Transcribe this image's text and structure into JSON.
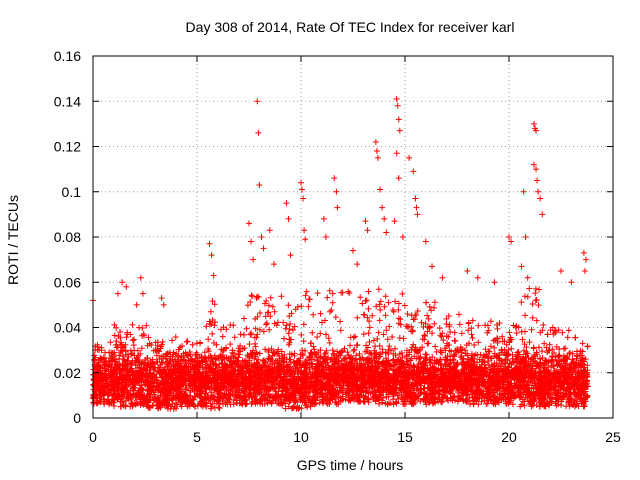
{
  "chart_data": {
    "type": "scatter",
    "title": "Day 308 of 2014, Rate Of TEC Index for receiver karl",
    "xlabel": "GPS time / hours",
    "ylabel": "ROTI / TECUs",
    "xlim": [
      0,
      25
    ],
    "ylim": [
      0,
      0.16
    ],
    "xticks": [
      0,
      5,
      10,
      15,
      20,
      25
    ],
    "xtick_labels": [
      "0",
      "5",
      "10",
      "15",
      "20",
      "25"
    ],
    "yticks": [
      0,
      0.02,
      0.04,
      0.06,
      0.08,
      0.1,
      0.12,
      0.14,
      0.16
    ],
    "ytick_labels": [
      "0",
      "0.02",
      "0.04",
      "0.06",
      "0.08",
      "0.1",
      "0.12",
      "0.14",
      "0.16"
    ],
    "grid": true,
    "marker": "+",
    "color": "#ff0000",
    "series": [
      {
        "name": "ROTI",
        "points": [
          [
            0.0,
            0.052
          ],
          [
            0.1,
            0.03
          ],
          [
            0.2,
            0.022
          ],
          [
            0.3,
            0.015
          ],
          [
            1.2,
            0.055
          ],
          [
            1.4,
            0.06
          ],
          [
            1.6,
            0.058
          ],
          [
            2.1,
            0.05
          ],
          [
            2.3,
            0.062
          ],
          [
            2.4,
            0.055
          ],
          [
            3.3,
            0.053
          ],
          [
            3.4,
            0.05
          ],
          [
            5.6,
            0.077
          ],
          [
            5.7,
            0.072
          ],
          [
            5.8,
            0.063
          ],
          [
            7.5,
            0.086
          ],
          [
            7.6,
            0.078
          ],
          [
            7.7,
            0.07
          ],
          [
            7.9,
            0.14
          ],
          [
            7.95,
            0.126
          ],
          [
            8.0,
            0.103
          ],
          [
            8.1,
            0.08
          ],
          [
            8.2,
            0.075
          ],
          [
            8.5,
            0.083
          ],
          [
            8.7,
            0.068
          ],
          [
            9.3,
            0.095
          ],
          [
            9.4,
            0.088
          ],
          [
            9.5,
            0.072
          ],
          [
            10.0,
            0.104
          ],
          [
            10.05,
            0.101
          ],
          [
            10.1,
            0.097
          ],
          [
            10.15,
            0.083
          ],
          [
            10.2,
            0.079
          ],
          [
            11.1,
            0.088
          ],
          [
            11.2,
            0.08
          ],
          [
            11.6,
            0.106
          ],
          [
            11.7,
            0.1
          ],
          [
            11.75,
            0.093
          ],
          [
            12.5,
            0.074
          ],
          [
            12.7,
            0.068
          ],
          [
            13.1,
            0.087
          ],
          [
            13.2,
            0.083
          ],
          [
            13.6,
            0.122
          ],
          [
            13.65,
            0.118
          ],
          [
            13.7,
            0.115
          ],
          [
            13.8,
            0.101
          ],
          [
            13.9,
            0.093
          ],
          [
            14.0,
            0.088
          ],
          [
            14.1,
            0.082
          ],
          [
            14.6,
            0.141
          ],
          [
            14.65,
            0.138
          ],
          [
            14.7,
            0.132
          ],
          [
            14.75,
            0.127
          ],
          [
            14.6,
            0.117
          ],
          [
            14.7,
            0.106
          ],
          [
            14.5,
            0.087
          ],
          [
            14.9,
            0.08
          ],
          [
            15.2,
            0.115
          ],
          [
            15.4,
            0.109
          ],
          [
            15.5,
            0.097
          ],
          [
            15.55,
            0.093
          ],
          [
            15.6,
            0.09
          ],
          [
            16.0,
            0.078
          ],
          [
            16.3,
            0.067
          ],
          [
            16.8,
            0.062
          ],
          [
            18.0,
            0.065
          ],
          [
            18.5,
            0.062
          ],
          [
            19.3,
            0.06
          ],
          [
            20.0,
            0.08
          ],
          [
            20.1,
            0.078
          ],
          [
            20.7,
            0.1
          ],
          [
            20.8,
            0.08
          ],
          [
            21.2,
            0.13
          ],
          [
            21.25,
            0.128
          ],
          [
            21.3,
            0.127
          ],
          [
            21.2,
            0.112
          ],
          [
            21.3,
            0.11
          ],
          [
            21.35,
            0.105
          ],
          [
            21.4,
            0.1
          ],
          [
            21.5,
            0.097
          ],
          [
            21.6,
            0.09
          ],
          [
            20.6,
            0.067
          ],
          [
            20.9,
            0.062
          ],
          [
            22.5,
            0.065
          ],
          [
            23.0,
            0.06
          ],
          [
            23.6,
            0.073
          ],
          [
            23.7,
            0.07
          ],
          [
            23.65,
            0.065
          ]
        ],
        "bands": [
          {
            "x": [
              0.0,
              1.0
            ],
            "y": [
              0.006,
              0.034
            ]
          },
          {
            "x": [
              1.0,
              2.6
            ],
            "y": [
              0.005,
              0.042
            ]
          },
          {
            "x": [
              2.6,
              4.0
            ],
            "y": [
              0.004,
              0.036
            ]
          },
          {
            "x": [
              4.0,
              5.4
            ],
            "y": [
              0.005,
              0.034
            ]
          },
          {
            "x": [
              5.4,
              6.2
            ],
            "y": [
              0.004,
              0.052
            ]
          },
          {
            "x": [
              6.2,
              7.4
            ],
            "y": [
              0.006,
              0.044
            ]
          },
          {
            "x": [
              7.4,
              9.0
            ],
            "y": [
              0.006,
              0.055
            ]
          },
          {
            "x": [
              9.0,
              10.5
            ],
            "y": [
              0.004,
              0.056
            ]
          },
          {
            "x": [
              10.5,
              12.0
            ],
            "y": [
              0.006,
              0.058
            ]
          },
          {
            "x": [
              12.0,
              13.5
            ],
            "y": [
              0.007,
              0.056
            ]
          },
          {
            "x": [
              13.5,
              15.0
            ],
            "y": [
              0.006,
              0.058
            ]
          },
          {
            "x": [
              15.0,
              16.5
            ],
            "y": [
              0.006,
              0.052
            ]
          },
          {
            "x": [
              16.5,
              18.0
            ],
            "y": [
              0.007,
              0.046
            ]
          },
          {
            "x": [
              18.0,
              19.5
            ],
            "y": [
              0.006,
              0.044
            ]
          },
          {
            "x": [
              19.5,
              20.5
            ],
            "y": [
              0.006,
              0.042
            ]
          },
          {
            "x": [
              20.5,
              21.8
            ],
            "y": [
              0.005,
              0.058
            ]
          },
          {
            "x": [
              21.8,
              23.0
            ],
            "y": [
              0.005,
              0.04
            ]
          },
          {
            "x": [
              23.0,
              23.8
            ],
            "y": [
              0.005,
              0.038
            ]
          }
        ]
      }
    ]
  }
}
